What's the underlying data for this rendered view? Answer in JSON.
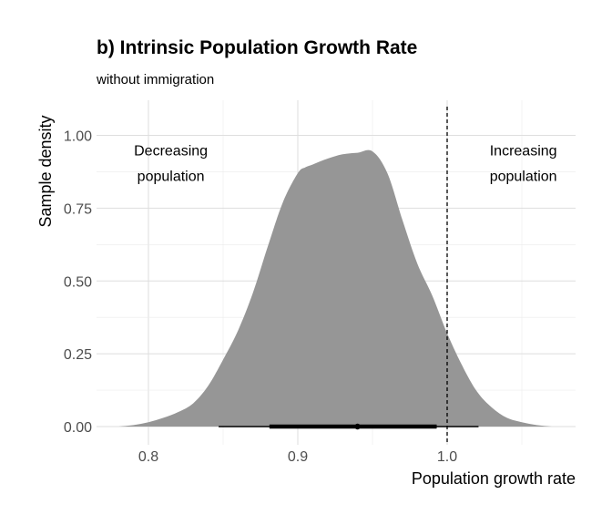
{
  "chart_data": {
    "type": "area",
    "title": "b) Intrinsic Population Growth Rate",
    "subtitle": "without immigration",
    "xlabel": "Population growth rate",
    "ylabel": "Sample density",
    "xlim": [
      0.78,
      1.08
    ],
    "ylim": [
      0,
      1.0
    ],
    "x_ticks": [
      0.8,
      0.9,
      1.0
    ],
    "x_tick_labels": [
      "0.8",
      "0.9",
      "1.0"
    ],
    "y_ticks": [
      0,
      0.25,
      0.5,
      0.75,
      1.0
    ],
    "y_tick_labels": [
      "0.00",
      "0.25",
      "0.50",
      "0.75",
      "1.00"
    ],
    "grid": true,
    "density": {
      "x": [
        0.78,
        0.79,
        0.8,
        0.81,
        0.82,
        0.83,
        0.84,
        0.85,
        0.86,
        0.87,
        0.88,
        0.89,
        0.9,
        0.905,
        0.91,
        0.92,
        0.93,
        0.94,
        0.95,
        0.96,
        0.97,
        0.98,
        0.99,
        1.0,
        1.01,
        1.02,
        1.03,
        1.04,
        1.05,
        1.06,
        1.07
      ],
      "y": [
        0.0,
        0.005,
        0.015,
        0.03,
        0.05,
        0.08,
        0.14,
        0.23,
        0.33,
        0.46,
        0.62,
        0.77,
        0.87,
        0.89,
        0.9,
        0.92,
        0.935,
        0.94,
        0.945,
        0.87,
        0.71,
        0.56,
        0.45,
        0.32,
        0.21,
        0.12,
        0.065,
        0.03,
        0.015,
        0.005,
        0.0
      ],
      "color": "#969696"
    },
    "reference_line": {
      "x": 1.0,
      "style": "dashed"
    },
    "interval": {
      "point": 0.94,
      "inner": [
        0.881,
        0.993
      ],
      "outer": [
        0.847,
        1.021
      ],
      "color": "#000000"
    },
    "annotations": [
      {
        "text_lines": [
          "Decreasing",
          "population"
        ],
        "x": 0.815,
        "y": 0.95
      },
      {
        "text_lines": [
          "Increasing",
          "population"
        ],
        "x": 1.051,
        "y": 0.95
      }
    ]
  }
}
